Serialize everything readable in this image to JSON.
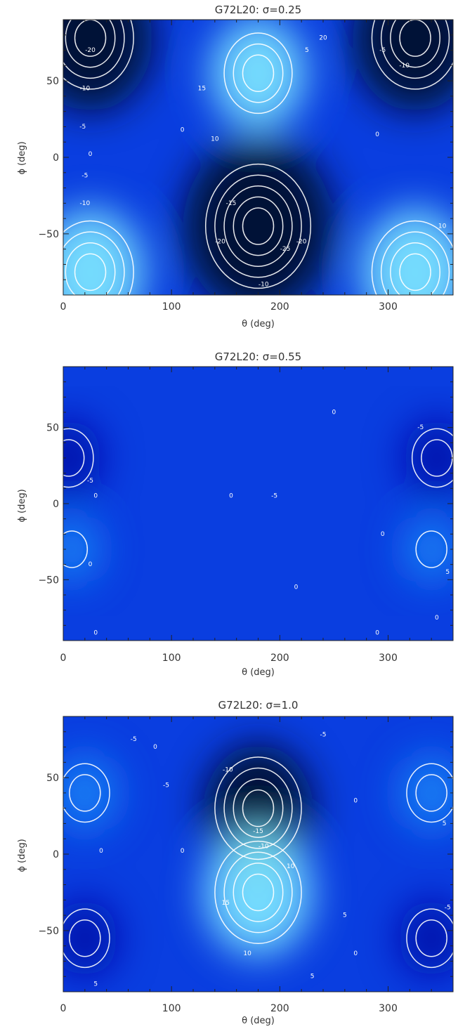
{
  "chart_data": [
    {
      "type": "contour",
      "title": "G72L20: σ=0.25",
      "xlabel": "θ (deg)",
      "ylabel": "ϕ (deg)",
      "xlim": [
        0,
        360
      ],
      "ylim": [
        -90,
        90
      ],
      "xticks": [
        "0",
        "100",
        "200",
        "300"
      ],
      "yticks": [
        "50",
        "0",
        "−50"
      ],
      "colormap": [
        "#000a28",
        "#0008a8",
        "#0a3ee0",
        "#1a82f5",
        "#7ee8ff"
      ],
      "contour_color": "#ffffff",
      "features": [
        {
          "kind": "max",
          "theta": 180,
          "phi": 55,
          "value": 15
        },
        {
          "kind": "min",
          "theta": 180,
          "phi": -45,
          "value": -28
        },
        {
          "kind": "min",
          "theta": 25,
          "phi": 78,
          "value": -22
        },
        {
          "kind": "min",
          "theta": 325,
          "phi": 78,
          "value": -22
        },
        {
          "kind": "max",
          "theta": 25,
          "phi": -75,
          "value": 18
        },
        {
          "kind": "max",
          "theta": 325,
          "phi": -75,
          "value": 18
        }
      ],
      "contour_labels": [
        {
          "text": "-20",
          "theta": 25,
          "phi": 70
        },
        {
          "text": "-10",
          "theta": 20,
          "phi": 45
        },
        {
          "text": "-5",
          "theta": 18,
          "phi": 20
        },
        {
          "text": "15",
          "theta": 128,
          "phi": 45
        },
        {
          "text": "10",
          "theta": 140,
          "phi": 12
        },
        {
          "text": "0",
          "theta": 110,
          "phi": 18
        },
        {
          "text": "5",
          "theta": 225,
          "phi": 70
        },
        {
          "text": "20",
          "theta": 240,
          "phi": 78
        },
        {
          "text": "-5",
          "theta": 295,
          "phi": 70
        },
        {
          "text": "-10",
          "theta": 315,
          "phi": 60
        },
        {
          "text": "0",
          "theta": 290,
          "phi": 15
        },
        {
          "text": "0",
          "theta": 25,
          "phi": 2
        },
        {
          "text": "-5",
          "theta": 20,
          "phi": -12
        },
        {
          "text": "-10",
          "theta": 20,
          "phi": -30
        },
        {
          "text": "-15",
          "theta": 155,
          "phi": -30
        },
        {
          "text": "-20",
          "theta": 145,
          "phi": -55
        },
        {
          "text": "-25",
          "theta": 205,
          "phi": -60
        },
        {
          "text": "-20",
          "theta": 220,
          "phi": -55
        },
        {
          "text": "-10",
          "theta": 185,
          "phi": -83
        },
        {
          "text": "10",
          "theta": 350,
          "phi": -45
        }
      ]
    },
    {
      "type": "contour",
      "title": "G72L20: σ=0.55",
      "xlabel": "θ (deg)",
      "ylabel": "ϕ (deg)",
      "xlim": [
        0,
        360
      ],
      "ylim": [
        -90,
        90
      ],
      "xticks": [
        "0",
        "100",
        "200",
        "300"
      ],
      "yticks": [
        "50",
        "0",
        "−50"
      ],
      "colormap": [
        "#000a28",
        "#0008a8",
        "#0a3ee0",
        "#1a82f5",
        "#7ee8ff"
      ],
      "contour_color": "#ffffff",
      "features": [
        {
          "kind": "min",
          "theta": 5,
          "phi": 30,
          "value": -8
        },
        {
          "kind": "min",
          "theta": 345,
          "phi": 30,
          "value": -8
        },
        {
          "kind": "max",
          "theta": 8,
          "phi": -30,
          "value": 6
        },
        {
          "kind": "max",
          "theta": 340,
          "phi": -30,
          "value": 6
        }
      ],
      "contour_labels": [
        {
          "text": "0",
          "theta": 250,
          "phi": 60
        },
        {
          "text": "-5",
          "theta": 330,
          "phi": 50
        },
        {
          "text": "-5",
          "theta": 25,
          "phi": 15
        },
        {
          "text": "0",
          "theta": 30,
          "phi": 5
        },
        {
          "text": "0",
          "theta": 155,
          "phi": 5
        },
        {
          "text": "-5",
          "theta": 195,
          "phi": 5
        },
        {
          "text": "0",
          "theta": 295,
          "phi": -20
        },
        {
          "text": "0",
          "theta": 25,
          "phi": -40
        },
        {
          "text": "5",
          "theta": 355,
          "phi": -45
        },
        {
          "text": "0",
          "theta": 215,
          "phi": -55
        },
        {
          "text": "0",
          "theta": 30,
          "phi": -85
        },
        {
          "text": "0",
          "theta": 290,
          "phi": -85
        },
        {
          "text": "0",
          "theta": 345,
          "phi": -75
        }
      ]
    },
    {
      "type": "contour",
      "title": "G72L20: σ=1.0",
      "xlabel": "θ (deg)",
      "ylabel": "ϕ (deg)",
      "xlim": [
        0,
        360
      ],
      "ylim": [
        -90,
        90
      ],
      "xticks": [
        "0",
        "100",
        "200",
        "300"
      ],
      "yticks": [
        "50",
        "0",
        "−50"
      ],
      "colormap": [
        "#000a28",
        "#0008a8",
        "#0a3ee0",
        "#1a82f5",
        "#7ee8ff"
      ],
      "contour_color": "#ffffff",
      "features": [
        {
          "kind": "min",
          "theta": 180,
          "phi": 30,
          "value": -18
        },
        {
          "kind": "max",
          "theta": 180,
          "phi": -25,
          "value": 18
        },
        {
          "kind": "max",
          "theta": 20,
          "phi": 40,
          "value": 8
        },
        {
          "kind": "max",
          "theta": 340,
          "phi": 40,
          "value": 8
        },
        {
          "kind": "min",
          "theta": 20,
          "phi": -55,
          "value": -8
        },
        {
          "kind": "min",
          "theta": 340,
          "phi": -55,
          "value": -8
        }
      ],
      "contour_labels": [
        {
          "text": "-5",
          "theta": 65,
          "phi": 75
        },
        {
          "text": "0",
          "theta": 85,
          "phi": 70
        },
        {
          "text": "-5",
          "theta": 95,
          "phi": 45
        },
        {
          "text": "-10",
          "theta": 152,
          "phi": 55
        },
        {
          "text": "-5",
          "theta": 240,
          "phi": 78
        },
        {
          "text": "0",
          "theta": 270,
          "phi": 35
        },
        {
          "text": "5",
          "theta": 352,
          "phi": 20
        },
        {
          "text": "0",
          "theta": 35,
          "phi": 2
        },
        {
          "text": "0",
          "theta": 110,
          "phi": 2
        },
        {
          "text": "-15",
          "theta": 180,
          "phi": 15
        },
        {
          "text": "-10",
          "theta": 185,
          "phi": 5
        },
        {
          "text": "10",
          "theta": 210,
          "phi": -8
        },
        {
          "text": "15",
          "theta": 150,
          "phi": -32
        },
        {
          "text": "10",
          "theta": 170,
          "phi": -65
        },
        {
          "text": "5",
          "theta": 260,
          "phi": -40
        },
        {
          "text": "0",
          "theta": 270,
          "phi": -65
        },
        {
          "text": "-5",
          "theta": 355,
          "phi": -35
        },
        {
          "text": "5",
          "theta": 30,
          "phi": -85
        },
        {
          "text": "5",
          "theta": 230,
          "phi": -80
        }
      ]
    }
  ]
}
